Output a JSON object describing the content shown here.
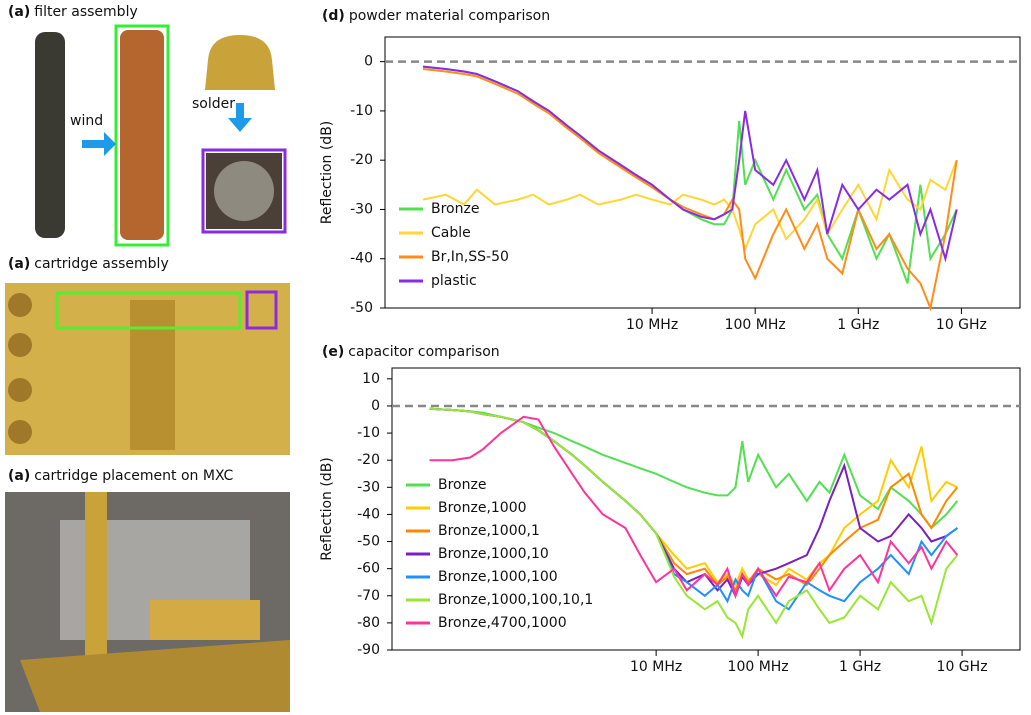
{
  "photos": {
    "filter": {
      "tag": "(a)",
      "text": "filter assembly"
    },
    "wind": "wind",
    "solder": "solder",
    "cartridge": {
      "tag": "(a)",
      "text": "cartridge assembly"
    },
    "placement": {
      "tag": "(a)",
      "text": "cartridge placement on MXC"
    }
  },
  "chart_data": [
    {
      "type": "line",
      "panel": "(d)",
      "title": "powder material comparison",
      "y_label": "Reflection (dB)",
      "xscale": "log",
      "xlim": [
        25700,
        37000000000
      ],
      "xticks": [
        {
          "value": 10000000,
          "label": "10 MHz"
        },
        {
          "value": 100000000,
          "label": "100 MHz"
        },
        {
          "value": 1000000000,
          "label": "1 GHz"
        },
        {
          "value": 10000000000,
          "label": "10 GHz"
        }
      ],
      "ylim": [
        -50,
        5
      ],
      "yticks": [
        0,
        -10,
        -20,
        -30,
        -40,
        -50
      ],
      "reference_line": 0,
      "legend": "lower left",
      "x": [
        60000,
        100000,
        150000,
        200000,
        300000,
        500000,
        700000,
        1000000,
        1500000,
        2000000,
        3000000,
        5000000,
        7000000,
        10000000,
        15000000,
        20000000,
        30000000,
        40000000,
        50000000,
        60000000,
        70000000,
        80000000,
        100000000,
        150000000,
        200000000,
        300000000,
        400000000,
        500000000,
        700000000,
        1000000000,
        1500000000,
        2000000000,
        3000000000,
        4000000000,
        5000000000,
        7000000000,
        9000000000
      ],
      "series": [
        {
          "name": "Bronze",
          "color": "#52e052",
          "values": [
            -1,
            -1.5,
            -2,
            -2.5,
            -4,
            -6,
            -8,
            -10,
            -13,
            -15,
            -18,
            -21,
            -23,
            -25,
            -28,
            -30,
            -32,
            -33,
            -33,
            -30,
            -12,
            -25,
            -20,
            -28,
            -22,
            -30,
            -27,
            -35,
            -40,
            -30,
            -40,
            -35,
            -45,
            -25,
            -40,
            -35,
            -30
          ]
        },
        {
          "name": "Cable",
          "color": "#ffd633",
          "values": [
            -28,
            -27,
            -29,
            -26,
            -29,
            -28,
            -27,
            -29,
            -28,
            -27,
            -29,
            -28,
            -27,
            -28,
            -29,
            -27,
            -28,
            -29,
            -28,
            -30,
            -34,
            -38,
            -33,
            -30,
            -36,
            -32,
            -28,
            -35,
            -30,
            -25,
            -32,
            -22,
            -28,
            -30,
            -24,
            -26,
            -20
          ]
        },
        {
          "name": "Br,In,SS-50",
          "color": "#ff8c1a",
          "values": [
            -1.5,
            -2,
            -2.5,
            -3,
            -4.5,
            -6.5,
            -8.5,
            -10.5,
            -13.5,
            -15.5,
            -18.5,
            -21.5,
            -23.5,
            -25.5,
            -28,
            -29.5,
            -31,
            -32,
            -31,
            -28,
            -30,
            -40,
            -44,
            -35,
            -30,
            -38,
            -33,
            -40,
            -43,
            -30,
            -38,
            -35,
            -42,
            -45,
            -50,
            -35,
            -20
          ]
        },
        {
          "name": "plastic",
          "color": "#8a2be2",
          "values": [
            -1,
            -1.5,
            -2,
            -2.5,
            -4,
            -6,
            -8,
            -10,
            -13,
            -15,
            -18,
            -21,
            -23,
            -25,
            -28,
            -30,
            -31.5,
            -32,
            -31,
            -30,
            -20,
            -10,
            -22,
            -25,
            -20,
            -28,
            -22,
            -35,
            -25,
            -30,
            -26,
            -28,
            -25,
            -35,
            -30,
            -40,
            -30
          ]
        }
      ]
    },
    {
      "type": "line",
      "panel": "(e)",
      "title": "capacitor comparison",
      "y_label": "Reflection (dB)",
      "xscale": "log",
      "xlim": [
        25700,
        37000000000
      ],
      "xticks": [
        {
          "value": 10000000,
          "label": "10 MHz"
        },
        {
          "value": 100000000,
          "label": "100 MHz"
        },
        {
          "value": 1000000000,
          "label": "1 GHz"
        },
        {
          "value": 10000000000,
          "label": "10 GHz"
        }
      ],
      "ylim": [
        -90,
        14
      ],
      "yticks": [
        10,
        0,
        -10,
        -20,
        -30,
        -40,
        -50,
        -60,
        -70,
        -80,
        -90
      ],
      "reference_line": 0,
      "legend": "lower left",
      "x": [
        60000,
        100000,
        150000,
        200000,
        300000,
        500000,
        700000,
        1000000,
        1500000,
        2000000,
        3000000,
        5000000,
        7000000,
        10000000,
        15000000,
        20000000,
        30000000,
        40000000,
        50000000,
        60000000,
        70000000,
        80000000,
        100000000,
        150000000,
        200000000,
        300000000,
        400000000,
        500000000,
        700000000,
        1000000000,
        1500000000,
        2000000000,
        3000000000,
        4000000000,
        5000000000,
        7000000000,
        9000000000
      ],
      "series": [
        {
          "name": "Bronze",
          "color": "#52e052",
          "values": [
            -1,
            -1.5,
            -2,
            -2.5,
            -4,
            -6,
            -8,
            -10,
            -13,
            -15,
            -18,
            -21,
            -23,
            -25,
            -28,
            -30,
            -32,
            -33,
            -33,
            -30,
            -13,
            -28,
            -18,
            -30,
            -25,
            -35,
            -28,
            -32,
            -18,
            -33,
            -38,
            -30,
            -35,
            -40,
            -45,
            -40,
            -35
          ]
        },
        {
          "name": "Bronze,1000",
          "color": "#ffcc00",
          "values": [
            -1,
            -1.5,
            -2,
            -3,
            -4,
            -6,
            -9,
            -13,
            -18,
            -22,
            -28,
            -35,
            -40,
            -47,
            -55,
            -60,
            -58,
            -65,
            -62,
            -66,
            -60,
            -64,
            -62,
            -66,
            -60,
            -64,
            -58,
            -55,
            -45,
            -40,
            -35,
            -20,
            -30,
            -15,
            -35,
            -28,
            -30
          ]
        },
        {
          "name": "Bronze,1000,1",
          "color": "#ff8800",
          "values": [
            -1,
            -1.5,
            -2,
            -3,
            -4,
            -6,
            -9,
            -13,
            -18,
            -22,
            -28,
            -35,
            -40,
            -47,
            -58,
            -62,
            -60,
            -66,
            -63,
            -68,
            -62,
            -65,
            -60,
            -64,
            -62,
            -66,
            -60,
            -55,
            -50,
            -45,
            -42,
            -30,
            -25,
            -40,
            -45,
            -35,
            -30
          ]
        },
        {
          "name": "Bronze,1000,10",
          "color": "#7a1fc0",
          "values": [
            -1,
            -1.5,
            -2,
            -3,
            -4,
            -6,
            -9,
            -13,
            -18,
            -22,
            -28,
            -35,
            -40,
            -47,
            -60,
            -65,
            -62,
            -68,
            -64,
            -70,
            -63,
            -66,
            -62,
            -60,
            -58,
            -55,
            -45,
            -35,
            -22,
            -45,
            -50,
            -48,
            -40,
            -45,
            -50,
            -48,
            -45
          ]
        },
        {
          "name": "Bronze,1000,100",
          "color": "#1e90ff",
          "values": [
            -1,
            -1.5,
            -2,
            -3,
            -4,
            -6,
            -9,
            -13,
            -18,
            -22,
            -28,
            -35,
            -40,
            -47,
            -62,
            -65,
            -70,
            -66,
            -72,
            -64,
            -68,
            -70,
            -60,
            -72,
            -75,
            -65,
            -68,
            -70,
            -72,
            -65,
            -60,
            -55,
            -62,
            -50,
            -55,
            -48,
            -45
          ]
        },
        {
          "name": "Bronze,1000,100,10,1",
          "color": "#99e633",
          "values": [
            -1,
            -1.5,
            -2,
            -3,
            -4,
            -6,
            -9,
            -13,
            -18,
            -22,
            -28,
            -35,
            -40,
            -47,
            -63,
            -70,
            -75,
            -72,
            -78,
            -80,
            -85,
            -75,
            -70,
            -80,
            -72,
            -68,
            -75,
            -80,
            -78,
            -70,
            -75,
            -65,
            -72,
            -70,
            -80,
            -60,
            -55
          ]
        },
        {
          "name": "Bronze,4700,1000",
          "color": "#ff3399",
          "values": [
            -20,
            -20,
            -19,
            -16,
            -10,
            -4,
            -5,
            -15,
            -25,
            -32,
            -40,
            -45,
            -55,
            -65,
            -60,
            -68,
            -62,
            -66,
            -60,
            -70,
            -62,
            -66,
            -60,
            -70,
            -63,
            -65,
            -58,
            -68,
            -60,
            -55,
            -65,
            -50,
            -58,
            -52,
            -60,
            -50,
            -55
          ]
        }
      ]
    }
  ]
}
